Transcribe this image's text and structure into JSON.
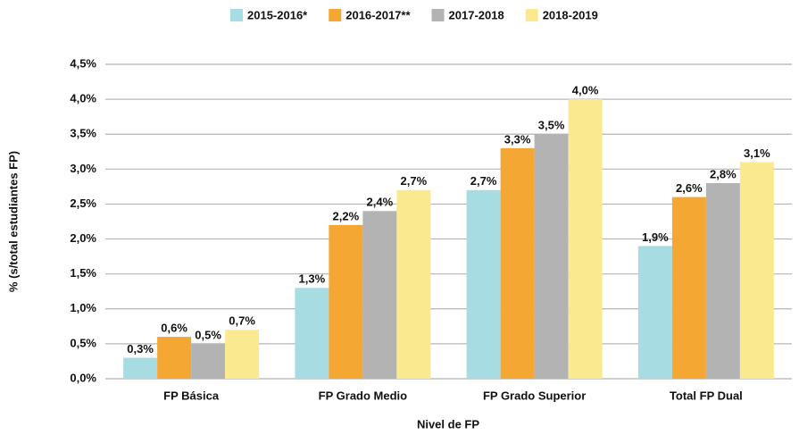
{
  "chart_data": {
    "type": "bar",
    "x_label": "Nivel de FP",
    "y_label": "% (s/total estudiantes FP)",
    "categories": [
      "FP Básica",
      "FP Grado Medio",
      "FP Grado Superior",
      "Total FP Dual"
    ],
    "series": [
      {
        "name": "2015-2016*",
        "color": "#a8dce3",
        "values": [
          0.3,
          1.3,
          2.7,
          1.9
        ],
        "value_labels": [
          "0,3%",
          "1,3%",
          "2,7%",
          "1,9%"
        ]
      },
      {
        "name": "2016-2017**",
        "color": "#f5a733",
        "values": [
          0.6,
          2.2,
          3.3,
          2.6
        ],
        "value_labels": [
          "0,6%",
          "2,2%",
          "3,3%",
          "2,6%"
        ]
      },
      {
        "name": "2017-2018",
        "color": "#b3b3b3",
        "values": [
          0.5,
          2.4,
          3.5,
          2.8
        ],
        "value_labels": [
          "0,5%",
          "2,4%",
          "3,5%",
          "2,8%"
        ]
      },
      {
        "name": "2018-2019",
        "color": "#fbe98f",
        "values": [
          0.7,
          2.7,
          4.0,
          3.1
        ],
        "value_labels": [
          "0,7%",
          "2,7%",
          "4,0%",
          "3,1%"
        ]
      }
    ],
    "ylim": [
      0,
      4.5
    ],
    "yticks": [
      {
        "value": 0,
        "label": "0,0%"
      },
      {
        "value": 0.5,
        "label": "0,5%"
      },
      {
        "value": 1,
        "label": "1,0%"
      },
      {
        "value": 1.5,
        "label": "1,5%"
      },
      {
        "value": 2,
        "label": "2,0%"
      },
      {
        "value": 2.5,
        "label": "2,5%"
      },
      {
        "value": 3,
        "label": "3,0%"
      },
      {
        "value": 3.5,
        "label": "3,5%"
      },
      {
        "value": 4,
        "label": "4,0%"
      },
      {
        "value": 4.5,
        "label": "4,5%"
      }
    ],
    "grid": true,
    "legend": "top"
  }
}
